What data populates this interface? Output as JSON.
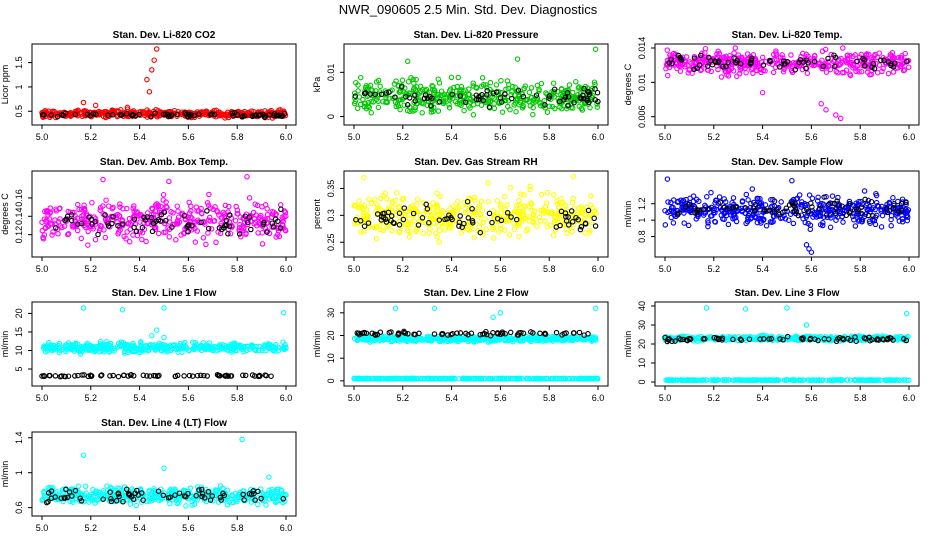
{
  "page": {
    "title": "NWR_090605  2.5 Min. Std. Dev. Diagnostics"
  },
  "colors": {
    "ref_points": "#000000",
    "co2": "#ff0000",
    "pressure": "#00c800",
    "temp": "#ff00ff",
    "rh": "#ffff00",
    "flow": "#0000ff",
    "line": "#00ffff"
  },
  "chart_data": [
    {
      "type": "scatter",
      "title": "Stan. Dev. Li-820 CO2",
      "ylabel": "Licor ppm",
      "xlim": [
        5.0,
        6.0
      ],
      "ylim": [
        0.3,
        1.8
      ],
      "xticks": [
        5.0,
        5.2,
        5.4,
        5.6,
        5.8,
        6.0
      ],
      "yticks": [
        0.5,
        1.0,
        1.5
      ],
      "color": "#ff0000",
      "series": [
        {
          "name": "colored",
          "base": 0.45,
          "spread": 0.12,
          "outliers": [
            [
              5.47,
              1.78
            ],
            [
              5.46,
              1.55
            ],
            [
              5.45,
              1.35
            ],
            [
              5.43,
              1.15
            ],
            [
              5.17,
              0.68
            ],
            [
              5.22,
              0.62
            ],
            [
              5.44,
              0.9
            ],
            [
              5.35,
              0.58
            ]
          ]
        },
        {
          "name": "black",
          "base": 0.42,
          "spread": 0.07,
          "outliers": []
        }
      ]
    },
    {
      "type": "scatter",
      "title": "Stan. Dev. Li-820 Pressure",
      "ylabel": "kPa",
      "xlim": [
        5.0,
        6.0
      ],
      "ylim": [
        -0.001,
        0.0155
      ],
      "xticks": [
        5.0,
        5.2,
        5.4,
        5.6,
        5.8,
        6.0
      ],
      "yticks": [
        0.0,
        0.01
      ],
      "color": "#00c800",
      "series": [
        {
          "name": "colored",
          "base": 0.0045,
          "spread": 0.006,
          "outliers": [
            [
              5.99,
              0.0152
            ],
            [
              5.22,
              0.0125
            ],
            [
              5.67,
              0.013
            ]
          ]
        },
        {
          "name": "black",
          "base": 0.0045,
          "spread": 0.004,
          "outliers": []
        }
      ]
    },
    {
      "type": "scatter",
      "title": "Stan. Dev. Li-820 Temp.",
      "ylabel": "degrees C",
      "xlim": [
        5.0,
        6.0
      ],
      "ylim": [
        0.0055,
        0.014
      ],
      "xticks": [
        5.0,
        5.2,
        5.4,
        5.6,
        5.8,
        6.0
      ],
      "yticks": [
        0.006,
        0.01,
        0.014
      ],
      "color": "#ff00ff",
      "series": [
        {
          "name": "colored",
          "base": 0.0123,
          "spread": 0.0022,
          "outliers": [
            [
              5.72,
              0.0058
            ],
            [
              5.7,
              0.0062
            ],
            [
              5.64,
              0.0075
            ],
            [
              5.66,
              0.0068
            ],
            [
              5.4,
              0.0088
            ]
          ]
        },
        {
          "name": "black",
          "base": 0.0123,
          "spread": 0.0015,
          "outliers": []
        }
      ]
    },
    {
      "type": "scatter",
      "title": "Stan. Dev. Amb. Box Temp.",
      "ylabel": "degrees C",
      "xlim": [
        5.0,
        6.0
      ],
      "ylim": [
        0.1,
        0.185
      ],
      "xticks": [
        5.0,
        5.2,
        5.4,
        5.6,
        5.8,
        6.0
      ],
      "yticks": [
        0.12,
        0.14,
        0.16
      ],
      "color": "#ff00ff",
      "series": [
        {
          "name": "colored",
          "base": 0.135,
          "spread": 0.035,
          "outliers": [
            [
              5.84,
              0.183
            ],
            [
              5.25,
              0.18
            ],
            [
              5.52,
              0.178
            ]
          ]
        },
        {
          "name": "black",
          "base": 0.133,
          "spread": 0.022,
          "outliers": []
        }
      ]
    },
    {
      "type": "scatter",
      "title": "Stan. Dev. Gas Stream RH",
      "ylabel": "percent",
      "xlim": [
        5.0,
        6.0
      ],
      "ylim": [
        0.23,
        0.375
      ],
      "xticks": [
        5.0,
        5.2,
        5.4,
        5.6,
        5.8,
        6.0
      ],
      "yticks": [
        0.25,
        0.3,
        0.35
      ],
      "color": "#ffff00",
      "series": [
        {
          "name": "colored",
          "base": 0.3,
          "spread": 0.065,
          "outliers": [
            [
              5.04,
              0.37
            ],
            [
              5.9,
              0.372
            ],
            [
              5.55,
              0.36
            ]
          ]
        },
        {
          "name": "black",
          "base": 0.293,
          "spread": 0.045,
          "outliers": []
        }
      ]
    },
    {
      "type": "scatter",
      "title": "Stan. Dev. Sample Flow",
      "ylabel": "ml/min",
      "xlim": [
        5.0,
        6.0
      ],
      "ylim": [
        0.6,
        1.55
      ],
      "xticks": [
        5.0,
        5.2,
        5.4,
        5.6,
        5.8,
        6.0
      ],
      "yticks": [
        0.8,
        1.0,
        1.2
      ],
      "color": "#0000ff",
      "series": [
        {
          "name": "colored",
          "base": 1.12,
          "spread": 0.3,
          "outliers": [
            [
              5.58,
              0.7
            ],
            [
              5.59,
              0.65
            ],
            [
              5.6,
              0.61
            ],
            [
              5.01,
              1.5
            ],
            [
              5.52,
              1.48
            ]
          ]
        },
        {
          "name": "black",
          "base": 1.15,
          "spread": 0.2,
          "outliers": []
        }
      ]
    },
    {
      "type": "scatter",
      "title": "Stan. Dev. Line 1 Flow",
      "ylabel": "ml/min",
      "xlim": [
        5.0,
        6.0
      ],
      "ylim": [
        1.5,
        22
      ],
      "xticks": [
        5.0,
        5.2,
        5.4,
        5.6,
        5.8,
        6.0
      ],
      "yticks": [
        5,
        10,
        15,
        20
      ],
      "color": "#00ffff",
      "series": [
        {
          "name": "colored",
          "base": 10.8,
          "spread": 2.2,
          "outliers": [
            [
              5.17,
              21.5
            ],
            [
              5.33,
              21.0
            ],
            [
              5.5,
              21.5
            ],
            [
              5.99,
              20.2
            ],
            [
              5.47,
              15.5
            ],
            [
              5.5,
              13.5
            ],
            [
              5.45,
              14.0
            ]
          ]
        },
        {
          "name": "black",
          "base": 3.2,
          "spread": 0.4,
          "outliers": []
        }
      ]
    },
    {
      "type": "scatter",
      "title": "Stan. Dev. Line 2 Flow",
      "ylabel": "ml/min",
      "xlim": [
        5.0,
        6.0
      ],
      "ylim": [
        -0.5,
        33
      ],
      "xticks": [
        5.0,
        5.2,
        5.4,
        5.6,
        5.8,
        6.0
      ],
      "yticks": [
        0,
        10,
        20,
        30
      ],
      "color": "#00ffff",
      "series": [
        {
          "name": "colored",
          "base": 18.5,
          "spread": 2.0,
          "outliers": [
            [
              5.17,
              32.0
            ],
            [
              5.33,
              32.0
            ],
            [
              5.6,
              30.0
            ],
            [
              5.99,
              32.0
            ],
            [
              5.57,
              28.0
            ]
          ]
        },
        {
          "name": "black",
          "base": 20.8,
          "spread": 1.6,
          "outliers": []
        },
        {
          "name": "baseline",
          "base": 1.0,
          "spread": 0.2,
          "outliers": []
        }
      ]
    },
    {
      "type": "scatter",
      "title": "Stan. Dev. Line 3 Flow",
      "ylabel": "ml/min",
      "xlim": [
        5.0,
        6.0
      ],
      "ylim": [
        0,
        40
      ],
      "xticks": [
        5.0,
        5.2,
        5.4,
        5.6,
        5.8,
        6.0
      ],
      "yticks": [
        0,
        10,
        20,
        30,
        40
      ],
      "color": "#00ffff",
      "series": [
        {
          "name": "colored",
          "base": 23.0,
          "spread": 2.0,
          "outliers": [
            [
              5.17,
              39.0
            ],
            [
              5.33,
              38.5
            ],
            [
              5.5,
              39.0
            ],
            [
              5.99,
              36.0
            ],
            [
              5.58,
              30.0
            ]
          ]
        },
        {
          "name": "black",
          "base": 22.5,
          "spread": 1.8,
          "outliers": []
        },
        {
          "name": "baseline",
          "base": 1.0,
          "spread": 0.2,
          "outliers": []
        }
      ]
    },
    {
      "type": "scatter",
      "title": "Stan. Dev. Line 4 (LT) Flow",
      "ylabel": "ml/min",
      "xlim": [
        5.0,
        6.0
      ],
      "ylim": [
        0.55,
        1.42
      ],
      "xticks": [
        5.0,
        5.2,
        5.4,
        5.6,
        5.8,
        6.0
      ],
      "yticks": [
        0.6,
        1.0,
        1.4
      ],
      "color": "#00ffff",
      "series": [
        {
          "name": "colored",
          "base": 0.74,
          "spread": 0.16,
          "outliers": [
            [
              5.82,
              1.38
            ],
            [
              5.17,
              1.2
            ],
            [
              5.5,
              1.05
            ],
            [
              5.93,
              0.95
            ]
          ]
        },
        {
          "name": "black",
          "base": 0.74,
          "spread": 0.12,
          "outliers": []
        }
      ]
    }
  ]
}
